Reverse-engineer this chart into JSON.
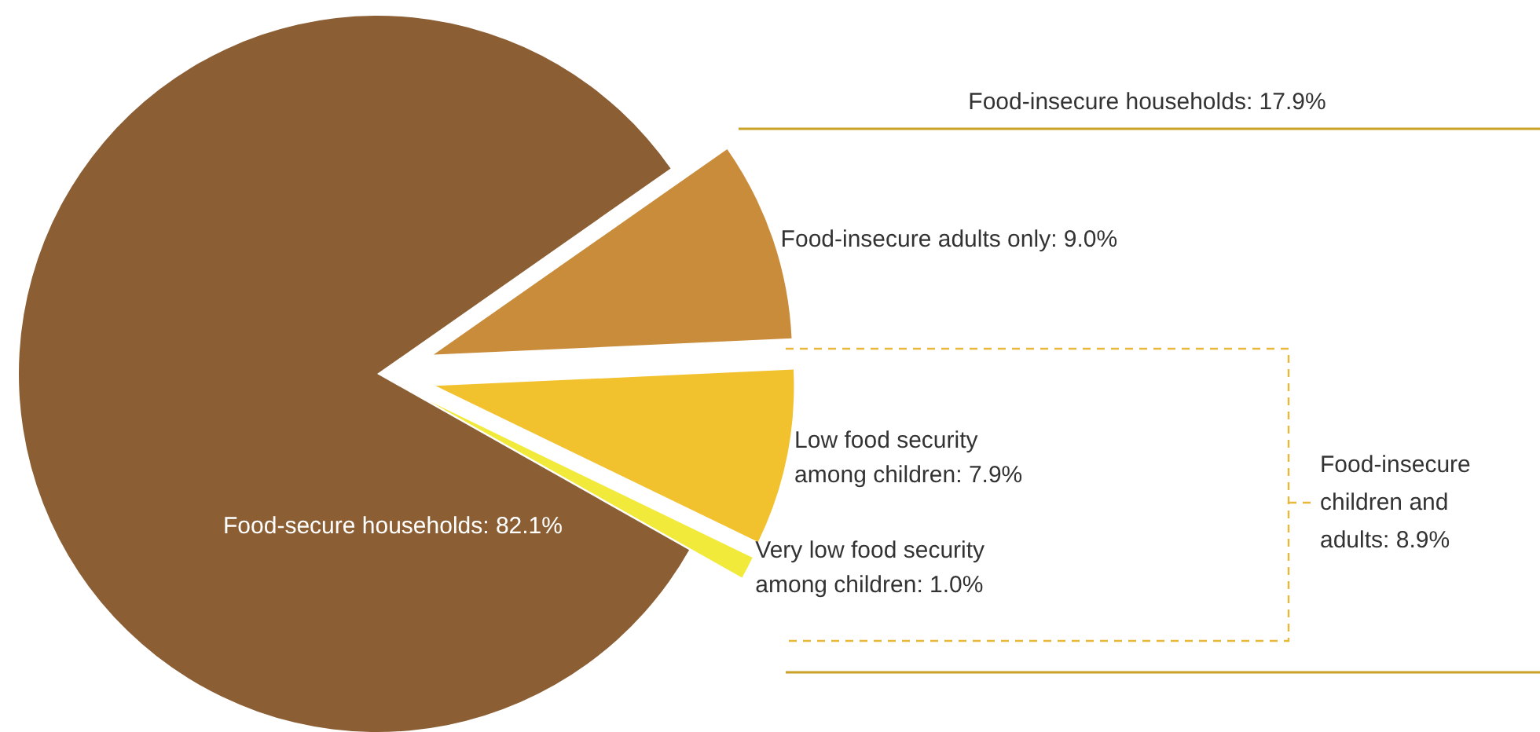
{
  "chart_data": {
    "type": "pie",
    "categories": [
      "Food-insecure adults only",
      "Low food security among children",
      "Very low food security among children",
      "Food-secure households"
    ],
    "values": [
      9.0,
      7.9,
      1.0,
      82.1
    ],
    "value_labels": [
      "9.0%",
      "7.9%",
      "1.0%",
      "82.1%"
    ],
    "colors": [
      "#c98c3b",
      "#f2c12e",
      "#f2ea3a",
      "#8b5e34"
    ],
    "annotations": [
      "Food-insecure households: 17.9%",
      "Food-insecure children and adults: 8.9%"
    ],
    "legend": false
  }
}
